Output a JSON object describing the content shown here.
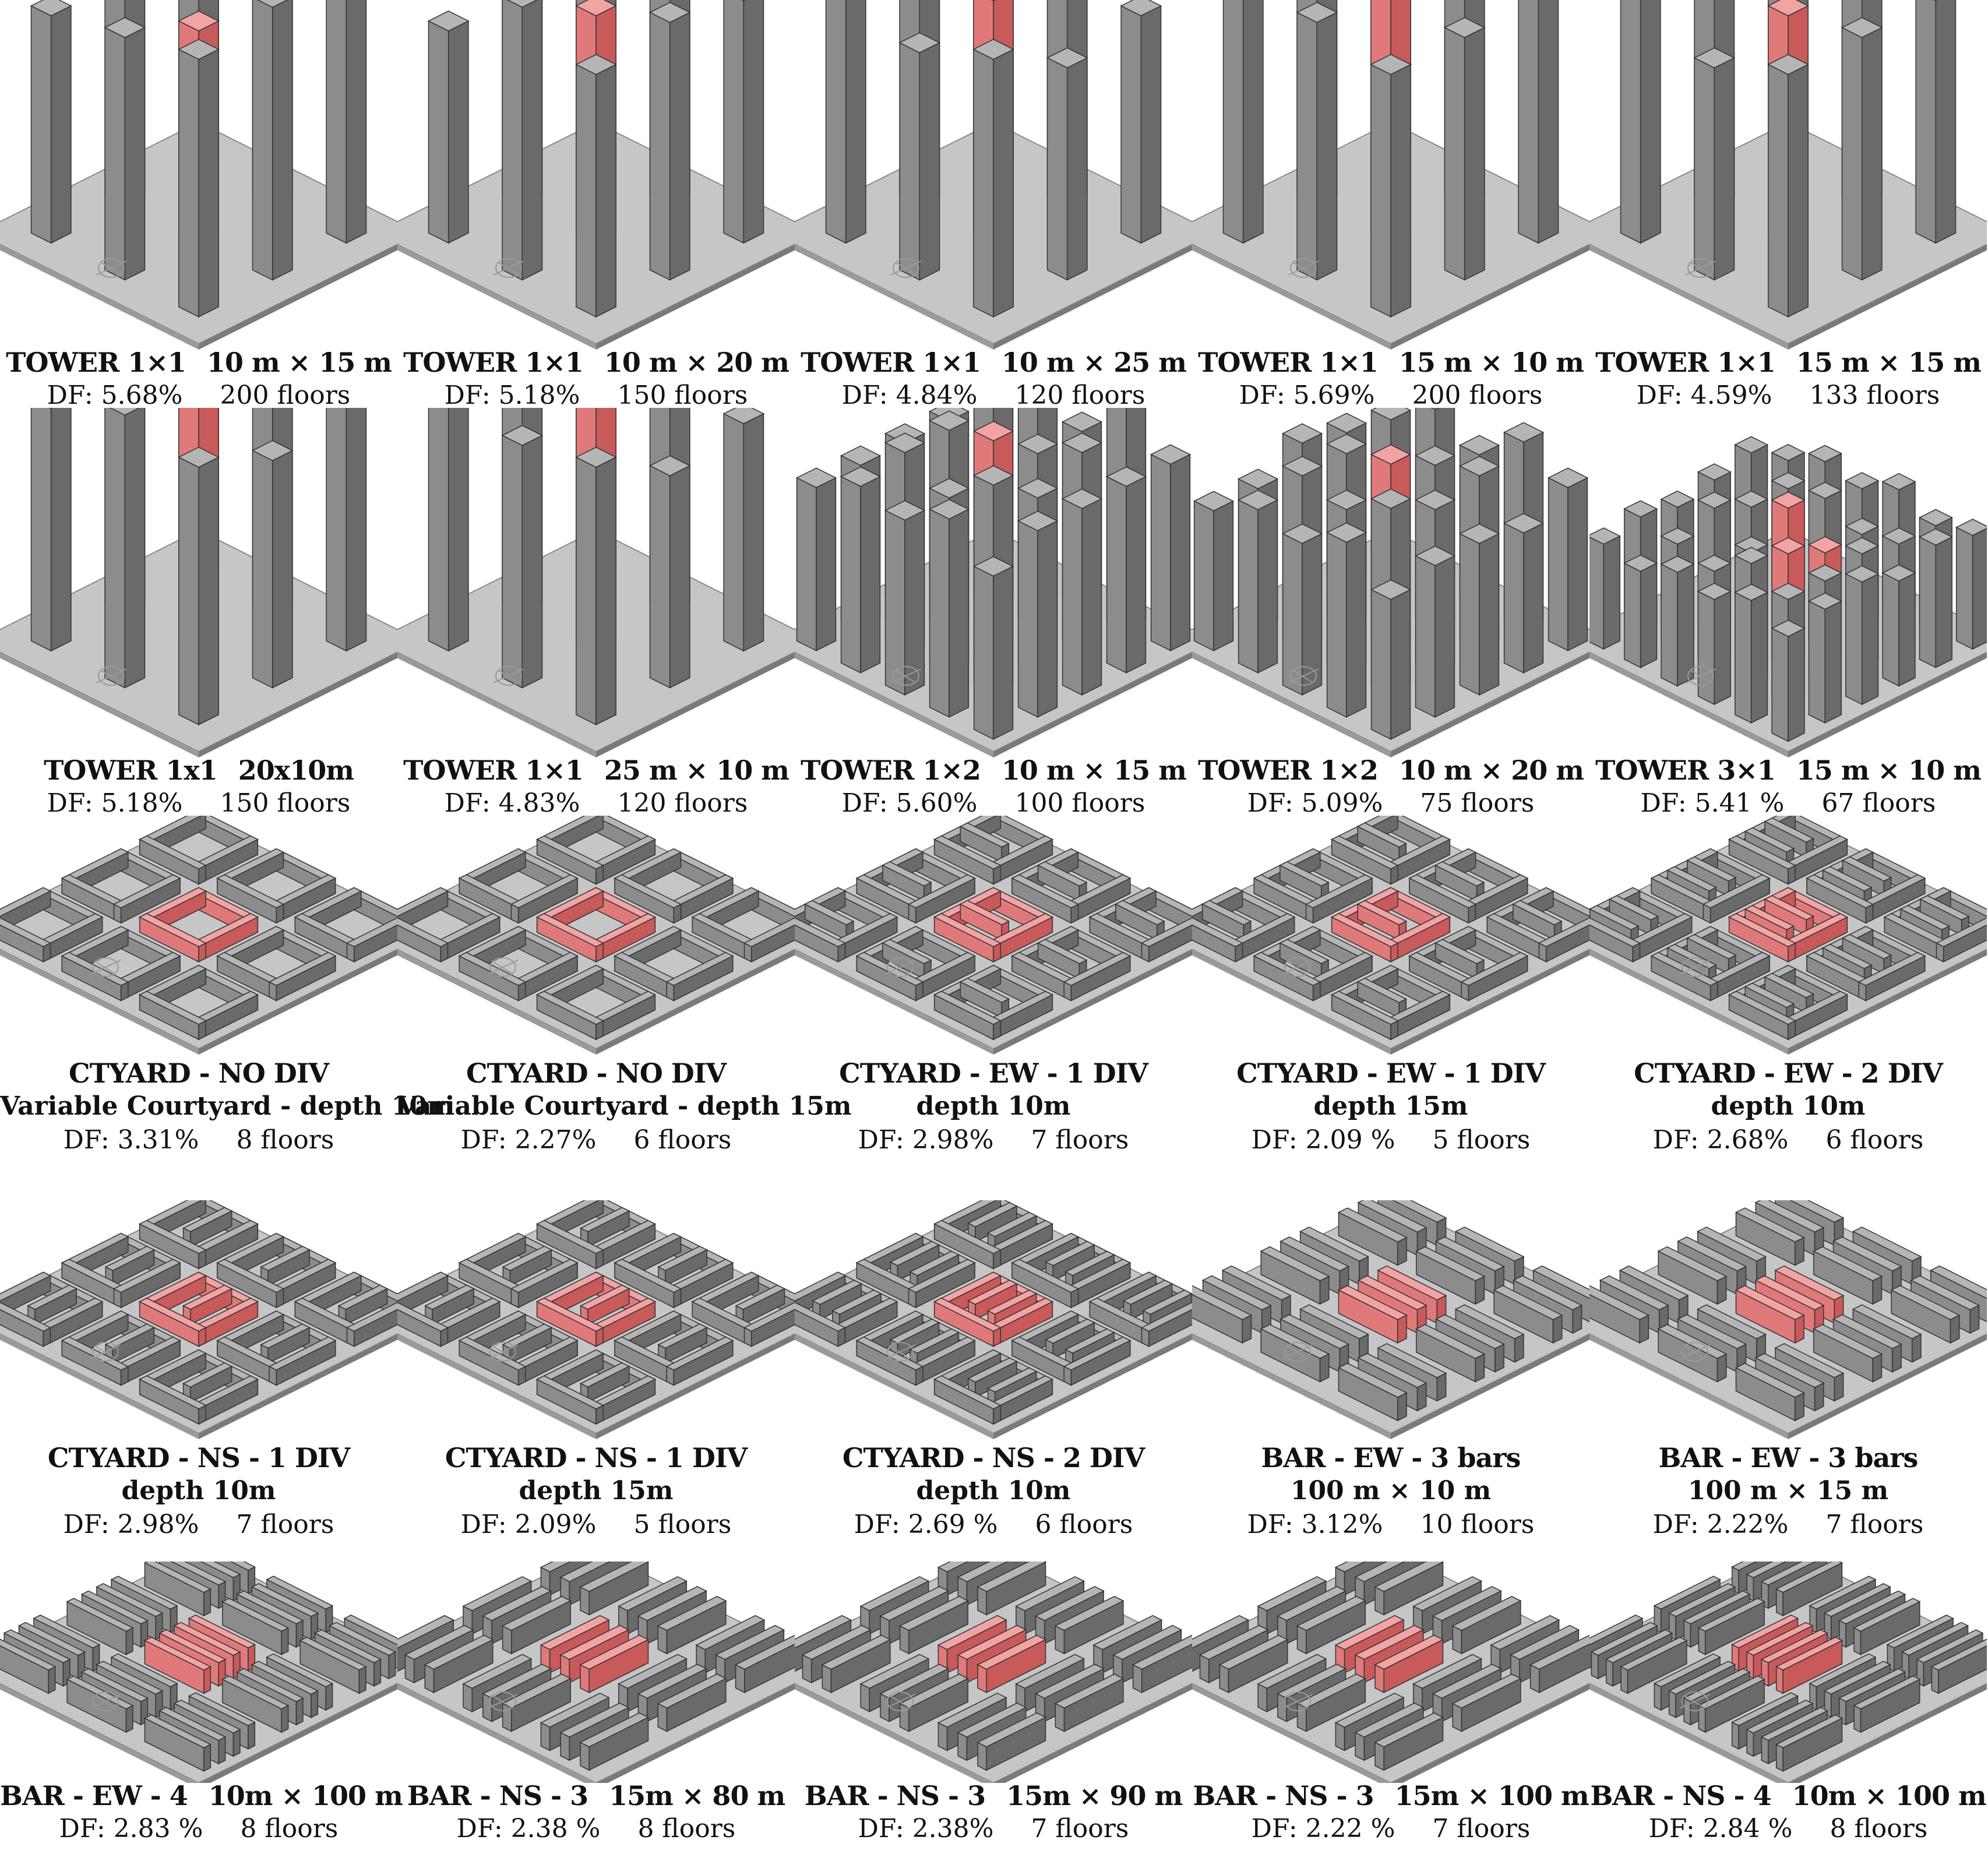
{
  "colors": {
    "ground": "#c6c6c6",
    "ground_line": "#8a8a8a",
    "bldg_top": "#b5b5b5",
    "bldg_left": "#8c8c8c",
    "bldg_right": "#6a6a6a",
    "hl_top": "#f2a3a3",
    "hl_left": "#e07a7a",
    "hl_right": "#c85a5a"
  },
  "panels": [
    {
      "kind": "tower",
      "n": 3,
      "h": [
        1.0,
        0.85,
        0.95,
        0.8,
        0.7,
        0.9,
        0.75,
        0.8,
        0.85
      ],
      "line1": "TOWER 1×1",
      "dims": "10 m × 15 m",
      "line2": "",
      "df": "DF: 5.68%",
      "floors": "200 floors"
    },
    {
      "kind": "tower",
      "n": 3,
      "h": [
        0.85,
        0.95,
        0.8,
        1.0,
        0.75,
        0.85,
        0.7,
        0.9,
        0.8
      ],
      "line1": "TOWER 1×1",
      "dims": "10 m × 20 m",
      "line2": "",
      "df": "DF: 5.18%",
      "floors": "150 floors"
    },
    {
      "kind": "tower",
      "n": 3,
      "h": [
        0.7,
        0.85,
        0.75,
        0.95,
        0.8,
        0.7,
        0.9,
        0.75,
        0.85
      ],
      "line1": "TOWER 1×1",
      "dims": "10 m × 25 m",
      "line2": "",
      "df": "DF: 4.84%",
      "floors": "120 floors"
    },
    {
      "kind": "tower",
      "n": 3,
      "h": [
        1.0,
        0.9,
        1.0,
        0.85,
        1.0,
        0.8,
        0.9,
        0.85,
        0.8
      ],
      "line1": "TOWER 1×1",
      "dims": "15 m × 10 m",
      "line2": "",
      "df": "DF: 5.69%",
      "floors": "200 floors"
    },
    {
      "kind": "tower",
      "n": 3,
      "h": [
        0.75,
        0.85,
        0.8,
        0.9,
        0.75,
        0.8,
        0.85,
        0.7,
        0.8
      ],
      "line1": "TOWER 1×1",
      "dims": "15 m × 15 m",
      "line2": "",
      "df": "DF: 4.59%",
      "floors": "133 floors"
    },
    {
      "kind": "tower",
      "n": 3,
      "h": [
        0.95,
        0.8,
        1.0,
        0.85,
        0.9,
        0.75,
        0.8,
        0.9,
        0.85
      ],
      "line1": "TOWER 1x1",
      "dims": "20x10m",
      "line2": "",
      "df": "DF: 5.18%",
      "floors": "150 floors"
    },
    {
      "kind": "tower",
      "n": 3,
      "h": [
        0.8,
        0.9,
        0.75,
        1.0,
        0.85,
        0.7,
        0.9,
        0.8,
        0.85
      ],
      "line1": "TOWER 1×1",
      "dims": "25 m × 10 m",
      "line2": "",
      "df": "DF: 4.83%",
      "floors": "120 floors"
    },
    {
      "kind": "tower",
      "n": 5,
      "h": [
        0.7,
        0.85,
        0.75,
        0.95,
        0.8,
        0.7,
        0.9,
        0.75,
        0.85,
        0.8,
        0.7,
        0.85,
        0.9,
        0.75,
        0.8,
        0.7,
        0.85,
        0.75,
        0.9,
        0.8,
        0.7,
        0.8,
        0.75,
        0.85,
        0.7
      ],
      "line1": "TOWER 1×2",
      "dims": "10 m × 15 m",
      "line2": "",
      "df": "DF: 5.60%",
      "floors": "100 floors"
    },
    {
      "kind": "tower",
      "n": 5,
      "h": [
        0.6,
        0.75,
        0.65,
        0.8,
        0.7,
        0.65,
        0.8,
        0.7,
        0.75,
        0.6,
        0.7,
        0.75,
        0.8,
        0.7,
        0.65,
        0.6,
        0.75,
        0.7,
        0.8,
        0.65,
        0.6,
        0.7,
        0.65,
        0.75,
        0.6
      ],
      "line1": "TOWER 1×2",
      "dims": "10 m × 20 m",
      "line2": "",
      "df": "DF: 5.09%",
      "floors": "75 floors"
    },
    {
      "kind": "tower",
      "n": 6,
      "h": [
        0.55,
        0.65,
        0.6,
        0.7,
        0.6,
        0.65,
        0.7,
        0.6,
        0.65,
        0.55,
        0.6,
        0.7,
        0.65,
        0.6,
        0.7,
        0.55,
        0.65,
        0.6,
        0.6,
        0.7,
        0.55,
        0.65,
        0.6,
        0.7,
        0.65,
        0.6,
        0.55,
        0.7,
        0.6,
        0.65,
        0.6,
        0.55,
        0.65,
        0.6,
        0.7,
        0.6
      ],
      "line1": "TOWER 3×1",
      "dims": "15 m × 10 m",
      "line2": "",
      "df": "DF: 5.41 %",
      "floors": "67 floors"
    },
    {
      "kind": "ctyard",
      "div": 0,
      "dir": "none",
      "line1": "CTYARD - NO DIV",
      "dims": "",
      "line2": "Variable Courtyard - depth 10m",
      "df": "DF: 3.31%",
      "floors": "8 floors"
    },
    {
      "kind": "ctyard",
      "div": 0,
      "dir": "none",
      "line1": "CTYARD - NO DIV",
      "dims": "",
      "line2": "Variable Courtyard - depth 15m",
      "df": "DF: 2.27%",
      "floors": "6 floors"
    },
    {
      "kind": "ctyard",
      "div": 1,
      "dir": "ew",
      "line1": "CTYARD - EW - 1 DIV",
      "dims": "",
      "line2": "depth 10m",
      "df": "DF: 2.98%",
      "floors": "7 floors"
    },
    {
      "kind": "ctyard",
      "div": 1,
      "dir": "ew",
      "line1": "CTYARD - EW - 1 DIV",
      "dims": "",
      "line2": "depth 15m",
      "df": "DF: 2.09 %",
      "floors": "5 floors"
    },
    {
      "kind": "ctyard",
      "div": 2,
      "dir": "ew",
      "line1": "CTYARD - EW - 2 DIV",
      "dims": "",
      "line2": "depth 10m",
      "df": "DF: 2.68%",
      "floors": "6 floors"
    },
    {
      "kind": "ctyard",
      "div": 1,
      "dir": "ns",
      "line1": "CTYARD - NS - 1 DIV",
      "dims": "",
      "line2": "depth 10m",
      "df": "DF: 2.98%",
      "floors": "7 floors"
    },
    {
      "kind": "ctyard",
      "div": 1,
      "dir": "ns",
      "line1": "CTYARD - NS - 1 DIV",
      "dims": "",
      "line2": "depth 15m",
      "df": "DF: 2.09%",
      "floors": "5 floors"
    },
    {
      "kind": "ctyard",
      "div": 2,
      "dir": "ns",
      "line1": "CTYARD - NS - 2 DIV",
      "dims": "",
      "line2": "depth 10m",
      "df": "DF: 2.69 %",
      "floors": "6 floors"
    },
    {
      "kind": "bar",
      "count": 3,
      "dir": "ew",
      "line1": "BAR - EW  - 3 bars",
      "dims": "",
      "line2": "100 m × 10 m",
      "df": "DF: 3.12%",
      "floors": "10 floors"
    },
    {
      "kind": "bar",
      "count": 3,
      "dir": "ew",
      "line1": "BAR - EW  - 3 bars",
      "dims": "",
      "line2": "100 m × 15 m",
      "df": "DF: 2.22%",
      "floors": "7 floors"
    },
    {
      "kind": "bar",
      "count": 4,
      "dir": "ew",
      "line1": "BAR - EW - 4",
      "dims": "10m × 100 m",
      "line2": "",
      "df": "DF: 2.83 %",
      "floors": "8 floors"
    },
    {
      "kind": "bar",
      "count": 3,
      "dir": "ns",
      "line1": "BAR - NS - 3",
      "dims": "15m × 80 m",
      "line2": "",
      "df": "DF: 2.38 %",
      "floors": "8 floors"
    },
    {
      "kind": "bar",
      "count": 3,
      "dir": "ns",
      "line1": "BAR - NS - 3",
      "dims": "15m × 90 m",
      "line2": "",
      "df": "DF: 2.38%",
      "floors": "7 floors"
    },
    {
      "kind": "bar",
      "count": 3,
      "dir": "ns",
      "line1": "BAR - NS - 3",
      "dims": "15m × 100 m",
      "line2": "",
      "df": "DF: 2.22 %",
      "floors": "7 floors"
    },
    {
      "kind": "bar",
      "count": 4,
      "dir": "ns",
      "line1": "BAR - NS - 4",
      "dims": "10m × 100 m",
      "line2": "",
      "df": "DF: 2.84 %",
      "floors": "8 floors"
    }
  ]
}
